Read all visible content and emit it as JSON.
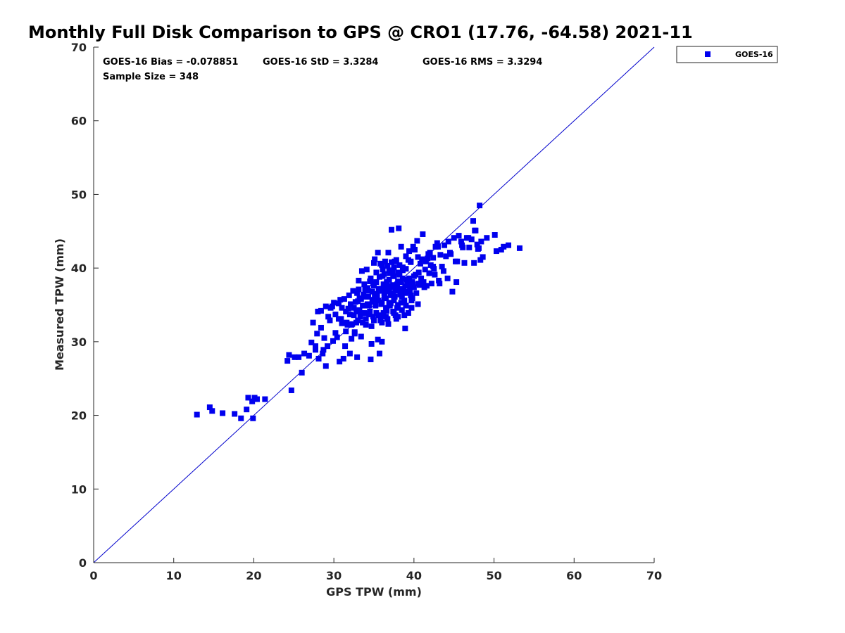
{
  "chart_data": {
    "type": "scatter",
    "title": "Monthly Full Disk Comparison to GPS @ CRO1 (17.76, -64.58) 2021-11",
    "xlabel": "GPS TPW (mm)",
    "ylabel": "Measured TPW (mm)",
    "xlim": [
      0,
      70
    ],
    "ylim": [
      0,
      70
    ],
    "xticks": [
      "0",
      "10",
      "20",
      "30",
      "40",
      "50",
      "60",
      "70"
    ],
    "yticks": [
      "0",
      "10",
      "20",
      "30",
      "40",
      "50",
      "60",
      "70"
    ],
    "grid": false,
    "legend_position": "outside-top-right",
    "marker_color": "#0000ee",
    "reference_line": {
      "type": "one-to-one",
      "color": "#0000cc"
    },
    "stats": {
      "bias": "GOES-16 Bias = -0.078851",
      "std": "GOES-16 StD = 3.3284",
      "rms": "GOES-16 RMS = 3.3294",
      "sample": "Sample Size = 348"
    },
    "series": [
      {
        "name": "GOES-16",
        "points": [
          [
            12.9,
            20.1
          ],
          [
            14.5,
            21.1
          ],
          [
            14.8,
            20.6
          ],
          [
            16.1,
            20.3
          ],
          [
            17.6,
            20.2
          ],
          [
            18.4,
            19.6
          ],
          [
            19.1,
            20.8
          ],
          [
            19.3,
            22.4
          ],
          [
            19.8,
            21.9
          ],
          [
            20.1,
            22.4
          ],
          [
            19.9,
            19.6
          ],
          [
            20.4,
            22.2
          ],
          [
            21.4,
            22.2
          ],
          [
            24.2,
            27.4
          ],
          [
            24.4,
            28.2
          ],
          [
            24.7,
            23.4
          ],
          [
            25.1,
            27.9
          ],
          [
            25.6,
            27.9
          ],
          [
            26.0,
            25.8
          ],
          [
            26.3,
            28.4
          ],
          [
            26.9,
            28.1
          ],
          [
            27.4,
            32.6
          ],
          [
            27.7,
            29.4
          ],
          [
            27.7,
            28.9
          ],
          [
            28.1,
            27.7
          ],
          [
            28.0,
            34.1
          ],
          [
            28.4,
            34.2
          ],
          [
            28.6,
            28.4
          ],
          [
            28.7,
            28.9
          ],
          [
            29.0,
            34.8
          ],
          [
            29.2,
            29.4
          ],
          [
            29.0,
            26.7
          ],
          [
            29.3,
            33.4
          ],
          [
            29.6,
            34.6
          ],
          [
            29.9,
            30.1
          ],
          [
            30.0,
            35.3
          ],
          [
            30.2,
            33.7
          ],
          [
            30.4,
            30.6
          ],
          [
            30.6,
            35.2
          ],
          [
            30.7,
            27.3
          ],
          [
            30.9,
            33.1
          ],
          [
            31.0,
            32.5
          ],
          [
            31.2,
            27.7
          ],
          [
            31.3,
            35.8
          ],
          [
            31.4,
            29.4
          ],
          [
            31.5,
            31.4
          ],
          [
            31.7,
            32.3
          ],
          [
            31.9,
            36.3
          ],
          [
            32.0,
            28.4
          ],
          [
            32.1,
            35.1
          ],
          [
            32.2,
            30.4
          ],
          [
            32.3,
            32.4
          ],
          [
            32.5,
            34.6
          ],
          [
            32.6,
            31.3
          ],
          [
            32.7,
            35.4
          ],
          [
            32.8,
            34.1
          ],
          [
            32.9,
            27.9
          ],
          [
            32.9,
            36.6
          ],
          [
            33.0,
            32.9
          ],
          [
            33.1,
            37.1
          ],
          [
            33.2,
            34.3
          ],
          [
            33.3,
            33.4
          ],
          [
            33.4,
            35.8
          ],
          [
            33.5,
            39.6
          ],
          [
            33.6,
            32.6
          ],
          [
            33.7,
            36.4
          ],
          [
            33.8,
            33.9
          ],
          [
            33.9,
            37.1
          ],
          [
            34.0,
            32.3
          ],
          [
            34.1,
            39.8
          ],
          [
            34.2,
            35.1
          ],
          [
            34.3,
            36.9
          ],
          [
            34.4,
            33.7
          ],
          [
            34.5,
            38.2
          ],
          [
            34.6,
            27.6
          ],
          [
            34.7,
            29.7
          ],
          [
            34.8,
            35.4
          ],
          [
            34.9,
            33.4
          ],
          [
            35.0,
            37.6
          ],
          [
            35.1,
            41.2
          ],
          [
            35.2,
            34.9
          ],
          [
            35.3,
            39.4
          ],
          [
            35.4,
            36.2
          ],
          [
            35.5,
            42.1
          ],
          [
            35.5,
            30.3
          ],
          [
            35.6,
            33.6
          ],
          [
            35.7,
            28.4
          ],
          [
            35.8,
            40.6
          ],
          [
            35.9,
            37.1
          ],
          [
            36.0,
            35.4
          ],
          [
            36.0,
            30.0
          ],
          [
            36.1,
            39.8
          ],
          [
            36.2,
            33.9
          ],
          [
            36.3,
            36.6
          ],
          [
            36.4,
            40.9
          ],
          [
            36.5,
            34.6
          ],
          [
            36.6,
            38.1
          ],
          [
            36.7,
            33.1
          ],
          [
            36.8,
            42.1
          ],
          [
            36.9,
            36.9
          ],
          [
            37.0,
            39.3
          ],
          [
            37.1,
            35.2
          ],
          [
            37.2,
            40.8
          ],
          [
            37.2,
            45.2
          ],
          [
            37.3,
            37.4
          ],
          [
            37.4,
            34.1
          ],
          [
            37.5,
            38.9
          ],
          [
            37.6,
            36.1
          ],
          [
            37.7,
            33.6
          ],
          [
            37.8,
            41.1
          ],
          [
            37.9,
            37.8
          ],
          [
            38.0,
            35.0
          ],
          [
            38.1,
            45.4
          ],
          [
            38.2,
            39.1
          ],
          [
            38.3,
            36.4
          ],
          [
            38.4,
            42.9
          ],
          [
            38.5,
            34.3
          ],
          [
            38.6,
            40.1
          ],
          [
            38.7,
            37.1
          ],
          [
            38.8,
            35.6
          ],
          [
            38.9,
            31.8
          ],
          [
            39.0,
            41.6
          ],
          [
            39.1,
            38.4
          ],
          [
            39.2,
            36.8
          ],
          [
            39.3,
            33.9
          ],
          [
            39.4,
            42.3
          ],
          [
            39.5,
            37.6
          ],
          [
            39.6,
            40.8
          ],
          [
            39.7,
            35.6
          ],
          [
            39.8,
            38.1
          ],
          [
            39.9,
            42.9
          ],
          [
            40.0,
            37.4
          ],
          [
            40.2,
            39.1
          ],
          [
            40.4,
            43.7
          ],
          [
            40.6,
            37.9
          ],
          [
            40.8,
            40.6
          ],
          [
            41.0,
            41.2
          ],
          [
            41.1,
            44.6
          ],
          [
            41.2,
            38.1
          ],
          [
            41.4,
            39.8
          ],
          [
            41.6,
            37.6
          ],
          [
            41.8,
            41.9
          ],
          [
            42.0,
            42.1
          ],
          [
            42.2,
            37.9
          ],
          [
            42.4,
            41.4
          ],
          [
            42.6,
            39.1
          ],
          [
            42.9,
            43.4
          ],
          [
            43.0,
            42.9
          ],
          [
            43.2,
            37.9
          ],
          [
            43.5,
            40.2
          ],
          [
            43.8,
            43.1
          ],
          [
            44.0,
            41.6
          ],
          [
            44.2,
            38.6
          ],
          [
            44.5,
            42.1
          ],
          [
            44.8,
            36.8
          ],
          [
            45.0,
            44.1
          ],
          [
            45.3,
            38.1
          ],
          [
            45.6,
            44.4
          ],
          [
            45.9,
            43.6
          ],
          [
            46.1,
            42.8
          ],
          [
            46.3,
            40.7
          ],
          [
            46.6,
            44.1
          ],
          [
            46.9,
            42.8
          ],
          [
            47.2,
            43.9
          ],
          [
            47.4,
            46.4
          ],
          [
            47.5,
            40.7
          ],
          [
            47.7,
            45.1
          ],
          [
            47.9,
            43.2
          ],
          [
            48.1,
            42.7
          ],
          [
            48.2,
            48.5
          ],
          [
            48.3,
            41.1
          ],
          [
            48.4,
            43.6
          ],
          [
            48.6,
            41.5
          ],
          [
            49.1,
            44.1
          ],
          [
            50.1,
            44.5
          ],
          [
            50.3,
            42.3
          ],
          [
            50.9,
            42.5
          ],
          [
            51.2,
            42.9
          ],
          [
            51.8,
            43.1
          ],
          [
            53.2,
            42.7
          ],
          [
            33.2,
            35.9
          ],
          [
            33.6,
            34.9
          ],
          [
            34.0,
            36.1
          ],
          [
            34.4,
            34.9
          ],
          [
            34.8,
            36.8
          ],
          [
            35.2,
            35.8
          ],
          [
            35.6,
            37.2
          ],
          [
            35.9,
            35.1
          ],
          [
            36.2,
            37.8
          ],
          [
            36.5,
            35.9
          ],
          [
            36.8,
            37.1
          ],
          [
            37.1,
            36.3
          ],
          [
            37.4,
            37.7
          ],
          [
            37.7,
            36.9
          ],
          [
            38.0,
            38.2
          ],
          [
            38.3,
            37.2
          ],
          [
            38.6,
            38.6
          ],
          [
            38.9,
            37.6
          ],
          [
            39.2,
            37.9
          ],
          [
            39.5,
            36.9
          ],
          [
            35.1,
            36.3
          ],
          [
            35.7,
            36.9
          ],
          [
            36.3,
            36.1
          ],
          [
            36.9,
            38.4
          ],
          [
            37.5,
            35.6
          ],
          [
            38.1,
            36.9
          ],
          [
            34.9,
            37.9
          ],
          [
            36.1,
            38.9
          ],
          [
            37.3,
            39.6
          ],
          [
            38.5,
            36.1
          ],
          [
            35.3,
            33.9
          ],
          [
            36.6,
            34.2
          ],
          [
            37.9,
            34.6
          ],
          [
            39.0,
            34.9
          ],
          [
            33.8,
            37.8
          ],
          [
            34.6,
            38.6
          ],
          [
            36.7,
            40.3
          ],
          [
            37.6,
            40.9
          ],
          [
            38.2,
            40.4
          ],
          [
            39.3,
            41.1
          ],
          [
            39.8,
            35.9
          ],
          [
            40.3,
            36.6
          ],
          [
            40.9,
            38.6
          ],
          [
            41.5,
            40.9
          ],
          [
            42.1,
            40.4
          ],
          [
            42.7,
            42.9
          ],
          [
            43.3,
            41.8
          ],
          [
            44.3,
            43.6
          ],
          [
            45.2,
            40.9
          ],
          [
            46.0,
            43.1
          ],
          [
            46.8,
            44.1
          ],
          [
            47.6,
            45.1
          ],
          [
            48.0,
            42.6
          ],
          [
            35.0,
            40.7
          ],
          [
            36.0,
            40.4
          ],
          [
            37.0,
            37.6
          ],
          [
            38.0,
            39.4
          ],
          [
            39.0,
            39.9
          ],
          [
            40.0,
            38.9
          ],
          [
            32.5,
            33.6
          ],
          [
            33.0,
            35.5
          ],
          [
            33.5,
            33.9
          ],
          [
            34.0,
            33.1
          ],
          [
            34.5,
            34.1
          ],
          [
            35.0,
            32.9
          ],
          [
            35.5,
            35.6
          ],
          [
            36.0,
            32.6
          ],
          [
            36.5,
            33.4
          ],
          [
            37.0,
            34.9
          ],
          [
            37.5,
            33.9
          ],
          [
            38.0,
            33.4
          ],
          [
            31.0,
            34.6
          ],
          [
            31.5,
            34.1
          ],
          [
            32.0,
            33.7
          ],
          [
            32.4,
            36.9
          ],
          [
            30.6,
            33.1
          ],
          [
            29.8,
            34.8
          ],
          [
            30.8,
            35.7
          ],
          [
            31.8,
            34.5
          ],
          [
            32.8,
            32.6
          ],
          [
            33.9,
            34.9
          ],
          [
            34.9,
            35.7
          ],
          [
            35.9,
            33.5
          ],
          [
            36.9,
            35.3
          ],
          [
            37.9,
            37.1
          ],
          [
            38.9,
            36.6
          ],
          [
            39.9,
            37.8
          ],
          [
            40.7,
            37.7
          ],
          [
            41.3,
            37.4
          ],
          [
            41.9,
            39.3
          ],
          [
            42.5,
            39.9
          ],
          [
            43.1,
            38.3
          ],
          [
            43.7,
            39.6
          ],
          [
            44.6,
            41.9
          ],
          [
            45.4,
            40.9
          ],
          [
            33.4,
            30.7
          ],
          [
            32.6,
            31.1
          ],
          [
            32.2,
            32.3
          ],
          [
            31.6,
            32.6
          ],
          [
            30.2,
            31.2
          ],
          [
            29.5,
            32.9
          ],
          [
            28.8,
            30.5
          ],
          [
            27.9,
            31.1
          ],
          [
            27.2,
            29.9
          ],
          [
            28.4,
            31.9
          ],
          [
            35.7,
            38.8
          ],
          [
            36.3,
            39.2
          ],
          [
            36.9,
            39.7
          ],
          [
            37.5,
            40.1
          ],
          [
            38.4,
            38.1
          ],
          [
            39.4,
            38.6
          ],
          [
            40.1,
            42.5
          ],
          [
            40.6,
            39.4
          ],
          [
            41.7,
            41.3
          ],
          [
            42.4,
            40.2
          ],
          [
            34.3,
            36.1
          ],
          [
            35.4,
            36.5
          ],
          [
            36.4,
            36.8
          ],
          [
            37.4,
            36.6
          ],
          [
            38.4,
            35.3
          ],
          [
            39.6,
            36.3
          ],
          [
            34.7,
            32.1
          ],
          [
            35.8,
            32.9
          ],
          [
            36.8,
            32.4
          ],
          [
            37.8,
            33.1
          ],
          [
            38.8,
            33.6
          ],
          [
            39.7,
            34.6
          ],
          [
            40.5,
            35.1
          ],
          [
            33.1,
            38.3
          ],
          [
            34.2,
            37.3
          ],
          [
            35.3,
            38.1
          ],
          [
            36.4,
            37.4
          ],
          [
            37.4,
            38.9
          ],
          [
            38.6,
            39.7
          ],
          [
            39.6,
            40.9
          ],
          [
            40.5,
            41.5
          ]
        ]
      }
    ]
  }
}
